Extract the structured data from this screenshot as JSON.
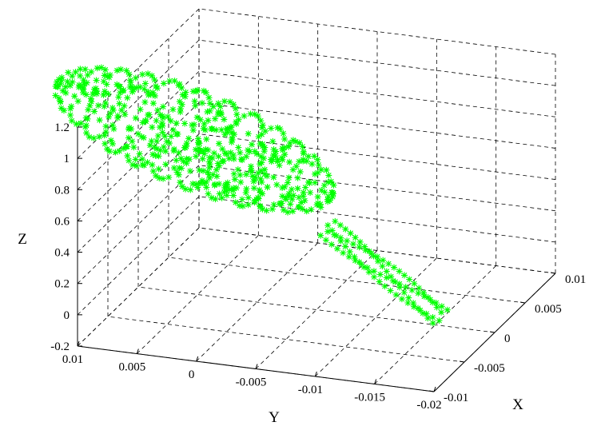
{
  "chart_data": {
    "type": "scatter3d",
    "title": "",
    "marker": "*",
    "marker_color": "#00ff00",
    "grid": true,
    "xlabel": "X",
    "ylabel": "Y",
    "zlabel": "Z",
    "xlim": [
      -0.01,
      0.01
    ],
    "ylim": [
      -0.02,
      0.01
    ],
    "zlim": [
      -0.2,
      1.2
    ],
    "x_ticks": [
      "-0.01",
      "-0.005",
      "0",
      "0.005",
      "0.01"
    ],
    "y_ticks": [
      "0.01",
      "0.005",
      "0",
      "-0.005",
      "-0.01",
      "-0.015",
      "-0.02"
    ],
    "z_ticks": [
      "-0.2",
      "0",
      "0.2",
      "0.4",
      "0.6",
      "0.8",
      "1",
      "1.2"
    ],
    "x_tick_values": [
      -0.01,
      -0.005,
      0,
      0.005,
      0.01
    ],
    "y_tick_values": [
      0.01,
      0.005,
      0,
      -0.005,
      -0.01,
      -0.015,
      -0.02
    ],
    "z_tick_values": [
      -0.2,
      0,
      0.2,
      0.4,
      0.6,
      0.8,
      1,
      1.2
    ],
    "shapes": {
      "ellipsoid_lobe": {
        "center": {
          "x": -0.0015,
          "y": 0.0045,
          "z": 0.85
        },
        "semi_axis_along_y": 0.0115,
        "semi_axis_along_x": 0.0048,
        "semi_axis_along_z": 0.22,
        "tilt_z_per_y": 22
      },
      "stem": {
        "start": {
          "x": -0.004,
          "y": -0.008,
          "z": 0.5
        },
        "end": {
          "x": -0.008,
          "y": -0.0195,
          "z": 0.2
        },
        "half_width_x": 0.0012,
        "half_height_z": 0.02
      }
    }
  }
}
